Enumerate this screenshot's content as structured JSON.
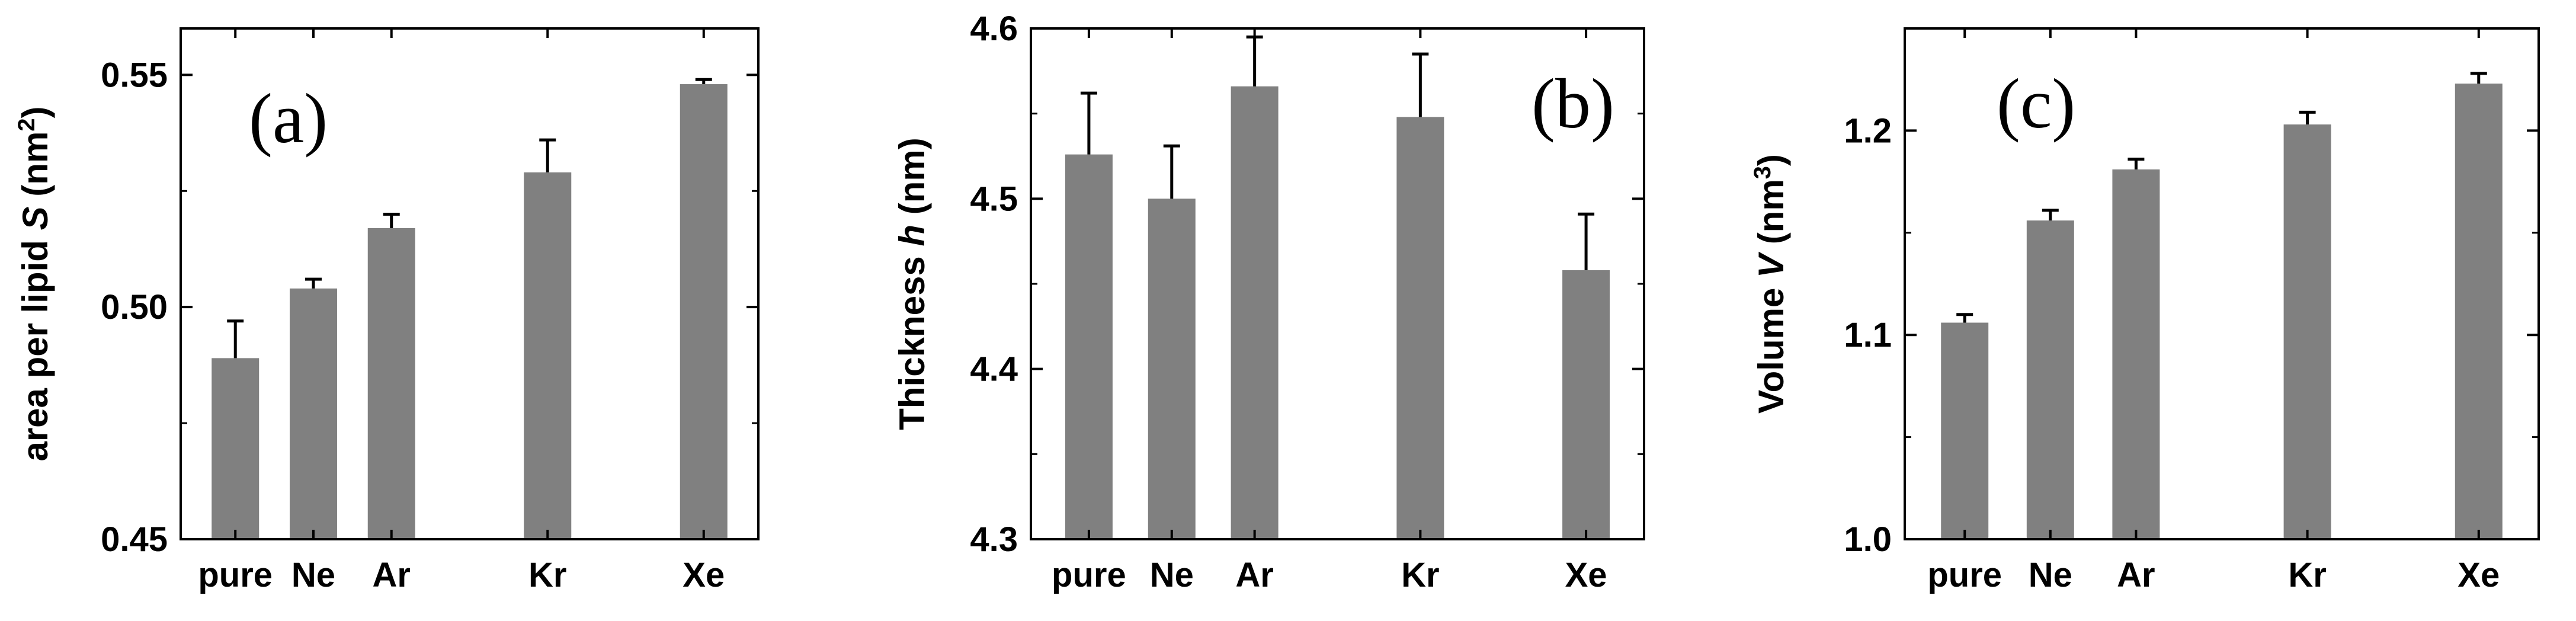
{
  "chart_data": [
    {
      "type": "bar",
      "panel_label": "(a)",
      "ylabel_parts": [
        "area per lipid ",
        "S",
        " (nm",
        "2",
        ")"
      ],
      "categories": [
        "pure",
        "Ne",
        "Ar",
        "Kr",
        "Xe"
      ],
      "x": [
        1,
        2,
        3,
        5,
        7
      ],
      "values": [
        0.489,
        0.504,
        0.517,
        0.529,
        0.548
      ],
      "errors": [
        0.008,
        0.002,
        0.003,
        0.007,
        0.001
      ],
      "ylim": [
        0.45,
        0.56
      ],
      "yticks": [
        0.45,
        0.5,
        0.55
      ],
      "ytick_labels": [
        "0.45",
        "0.50",
        "0.55"
      ],
      "bar_color": "#808080",
      "grid": false
    },
    {
      "type": "bar",
      "panel_label": "(b)",
      "ylabel_parts": [
        "Thickness ",
        "h",
        " (nm)"
      ],
      "categories": [
        "pure",
        "Ne",
        "Ar",
        "Kr",
        "Xe"
      ],
      "x": [
        1,
        2,
        3,
        5,
        7
      ],
      "values": [
        4.526,
        4.5,
        4.566,
        4.548,
        4.458
      ],
      "errors": [
        0.036,
        0.031,
        0.029,
        0.037,
        0.033
      ],
      "ylim": [
        4.3,
        4.6
      ],
      "yticks": [
        4.3,
        4.4,
        4.5,
        4.6
      ],
      "ytick_labels": [
        "4.3",
        "4.4",
        "4.5",
        "4.6"
      ],
      "bar_color": "#808080",
      "grid": false
    },
    {
      "type": "bar",
      "panel_label": "(c)",
      "ylabel_parts": [
        "Volume ",
        "V",
        " (nm",
        "3",
        ")"
      ],
      "categories": [
        "pure",
        "Ne",
        "Ar",
        "Kr",
        "Xe"
      ],
      "x": [
        1,
        2,
        3,
        5,
        7
      ],
      "values": [
        1.106,
        1.156,
        1.181,
        1.203,
        1.223
      ],
      "errors": [
        0.004,
        0.005,
        0.005,
        0.006,
        0.005
      ],
      "ylim": [
        1.0,
        1.25
      ],
      "yticks": [
        1.0,
        1.1,
        1.2
      ],
      "ytick_labels": [
        "1.0",
        "1.1",
        "1.2"
      ],
      "bar_color": "#808080",
      "grid": false
    }
  ]
}
